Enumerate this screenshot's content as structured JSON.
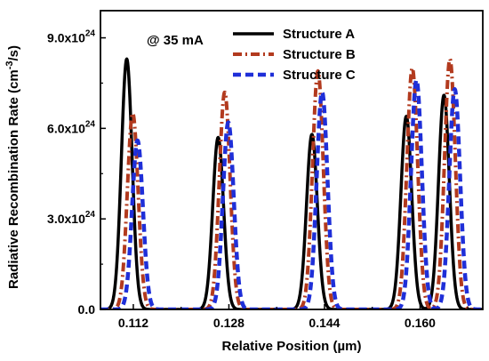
{
  "chart_data": {
    "type": "line",
    "xlabel": "Relative Position (µm)",
    "ylabel_main": "Radiative Recombination Rate (cm",
    "ylabel_exp": "-3",
    "ylabel_tail": "/s)",
    "annotation": "@ 35 mA",
    "xlim": [
      0.1065,
      0.1705
    ],
    "ylim": [
      0,
      9.9e+24
    ],
    "x_ticks": [
      0.112,
      0.128,
      0.144,
      0.16
    ],
    "x_tick_labels": [
      "0.112",
      "0.128",
      "0.144",
      "0.160"
    ],
    "y_ticks": [
      0,
      3e+24,
      6e+24,
      9e+24
    ],
    "y_tick_labels": [
      {
        "base": "0.0",
        "exp": ""
      },
      {
        "base": "3.0x10",
        "exp": "24"
      },
      {
        "base": "6.0x10",
        "exp": "24"
      },
      {
        "base": "9.0x10",
        "exp": "24"
      }
    ],
    "peak_width": 0.0009,
    "series": [
      {
        "name": "Structure A",
        "color": "#000000",
        "style": "solid",
        "peaks": [
          {
            "x": 0.1109,
            "y": 8.3e+24
          },
          {
            "x": 0.1262,
            "y": 5.7e+24
          },
          {
            "x": 0.1419,
            "y": 5.8e+24
          },
          {
            "x": 0.1577,
            "y": 6.4e+24
          },
          {
            "x": 0.164,
            "y": 7.1e+24
          }
        ]
      },
      {
        "name": "Structure B",
        "color": "#b23a1e",
        "style": "dashdot",
        "peaks": [
          {
            "x": 0.1119,
            "y": 6.5e+24
          },
          {
            "x": 0.1273,
            "y": 7.2e+24
          },
          {
            "x": 0.1429,
            "y": 7.9e+24
          },
          {
            "x": 0.1587,
            "y": 8e+24
          },
          {
            "x": 0.165,
            "y": 8.3e+24
          }
        ]
      },
      {
        "name": "Structure C",
        "color": "#1f2fd8",
        "style": "dash",
        "peaks": [
          {
            "x": 0.1127,
            "y": 5.6e+24
          },
          {
            "x": 0.1279,
            "y": 6.2e+24
          },
          {
            "x": 0.1436,
            "y": 7.2e+24
          },
          {
            "x": 0.1594,
            "y": 7.6e+24
          },
          {
            "x": 0.1658,
            "y": 7.3e+24
          }
        ]
      }
    ],
    "legend_position": "top-right",
    "grid": false
  }
}
